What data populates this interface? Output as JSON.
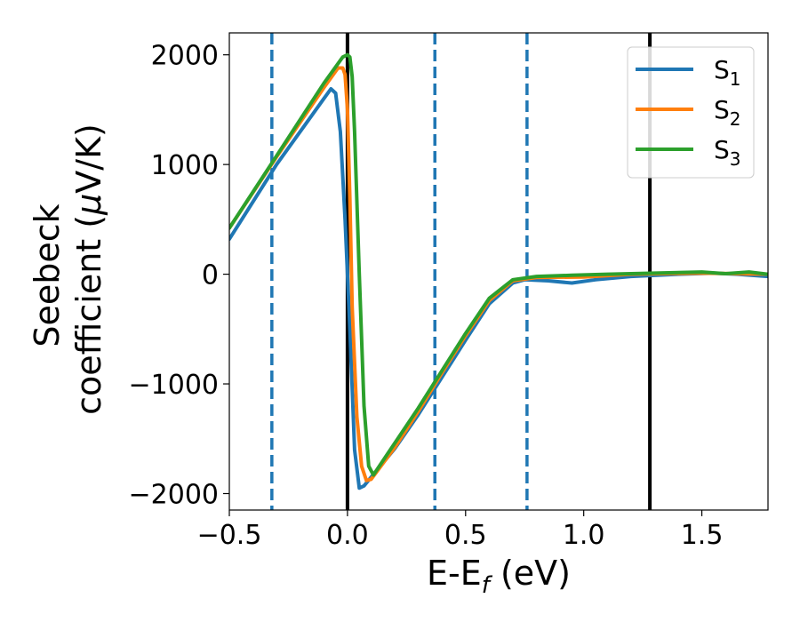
{
  "chart_data": {
    "type": "line",
    "xlabel": {
      "main": "E-E",
      "sub": "f",
      "unit": " (eV)"
    },
    "ylabel": {
      "line1": "Seebeck",
      "line2": "coefficient  (",
      "mu": "μ",
      "line2_end": "V/K)"
    },
    "xlim": [
      -0.5,
      1.78
    ],
    "ylim": [
      -2150,
      2200
    ],
    "xticks": [
      {
        "value": -0.5,
        "label": "−0.5"
      },
      {
        "value": 0.0,
        "label": "0.0"
      },
      {
        "value": 0.5,
        "label": "0.5"
      },
      {
        "value": 1.0,
        "label": "1.0"
      },
      {
        "value": 1.5,
        "label": "1.5"
      }
    ],
    "yticks": [
      {
        "value": 2000,
        "label": "2000"
      },
      {
        "value": 1000,
        "label": "1000"
      },
      {
        "value": 0,
        "label": "0"
      },
      {
        "value": -1000,
        "label": "−1000"
      },
      {
        "value": -2000,
        "label": "−2000"
      }
    ],
    "grid": false,
    "legend_position": "top-right",
    "vlines": [
      {
        "x": -0.32,
        "style": "dashed",
        "color": "#1f77b4"
      },
      {
        "x": 0.0,
        "style": "solid",
        "color": "#000000"
      },
      {
        "x": 0.37,
        "style": "dashed",
        "color": "#1f77b4"
      },
      {
        "x": 0.76,
        "style": "dashed",
        "color": "#1f77b4"
      },
      {
        "x": 1.28,
        "style": "solid",
        "color": "#000000"
      }
    ],
    "series": [
      {
        "name": "S",
        "subscript": "1",
        "color": "#1f77b4",
        "points": [
          [
            -0.5,
            320
          ],
          [
            -0.3,
            1000
          ],
          [
            -0.1,
            1600
          ],
          [
            -0.07,
            1690
          ],
          [
            -0.05,
            1650
          ],
          [
            -0.03,
            1300
          ],
          [
            -0.01,
            500
          ],
          [
            0.01,
            -500
          ],
          [
            0.03,
            -1600
          ],
          [
            0.05,
            -1950
          ],
          [
            0.07,
            -1930
          ],
          [
            0.1,
            -1850
          ],
          [
            0.2,
            -1590
          ],
          [
            0.3,
            -1280
          ],
          [
            0.4,
            -940
          ],
          [
            0.5,
            -600
          ],
          [
            0.6,
            -270
          ],
          [
            0.7,
            -80
          ],
          [
            0.75,
            -50
          ],
          [
            0.85,
            -60
          ],
          [
            0.95,
            -80
          ],
          [
            1.05,
            -50
          ],
          [
            1.2,
            -20
          ],
          [
            1.4,
            0
          ],
          [
            1.55,
            10
          ],
          [
            1.65,
            0
          ],
          [
            1.78,
            -20
          ]
        ]
      },
      {
        "name": "S",
        "subscript": "2",
        "color": "#ff7f0e",
        "points": [
          [
            -0.5,
            420
          ],
          [
            -0.3,
            1070
          ],
          [
            -0.1,
            1700
          ],
          [
            -0.04,
            1880
          ],
          [
            -0.02,
            1880
          ],
          [
            -0.01,
            1820
          ],
          [
            0.0,
            1500
          ],
          [
            0.01,
            700
          ],
          [
            0.02,
            -300
          ],
          [
            0.04,
            -1300
          ],
          [
            0.06,
            -1750
          ],
          [
            0.08,
            -1880
          ],
          [
            0.1,
            -1870
          ],
          [
            0.2,
            -1580
          ],
          [
            0.3,
            -1250
          ],
          [
            0.4,
            -900
          ],
          [
            0.5,
            -560
          ],
          [
            0.6,
            -240
          ],
          [
            0.7,
            -60
          ],
          [
            0.8,
            -30
          ],
          [
            1.0,
            -25
          ],
          [
            1.2,
            0
          ],
          [
            1.5,
            10
          ],
          [
            1.78,
            0
          ]
        ]
      },
      {
        "name": "S",
        "subscript": "3",
        "color": "#2ca02c",
        "points": [
          [
            -0.5,
            420
          ],
          [
            -0.3,
            1080
          ],
          [
            -0.1,
            1740
          ],
          [
            -0.02,
            1980
          ],
          [
            0.0,
            2000
          ],
          [
            0.01,
            1980
          ],
          [
            0.02,
            1800
          ],
          [
            0.03,
            1300
          ],
          [
            0.05,
            0
          ],
          [
            0.07,
            -1200
          ],
          [
            0.09,
            -1750
          ],
          [
            0.11,
            -1830
          ],
          [
            0.2,
            -1540
          ],
          [
            0.3,
            -1220
          ],
          [
            0.4,
            -880
          ],
          [
            0.5,
            -540
          ],
          [
            0.6,
            -220
          ],
          [
            0.7,
            -50
          ],
          [
            0.8,
            -20
          ],
          [
            0.95,
            -10
          ],
          [
            1.1,
            0
          ],
          [
            1.3,
            10
          ],
          [
            1.5,
            20
          ],
          [
            1.6,
            5
          ],
          [
            1.7,
            20
          ],
          [
            1.78,
            0
          ]
        ]
      }
    ]
  }
}
